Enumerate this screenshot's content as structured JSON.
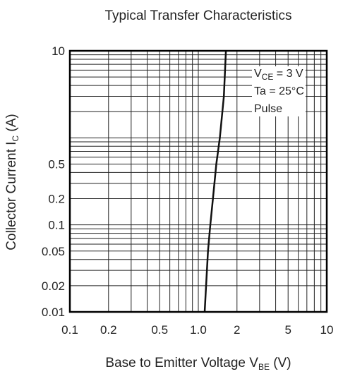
{
  "chart_data": {
    "type": "line",
    "title": "Typical Transfer Characteristics",
    "xlabel": {
      "prefix": "Base to Emitter Voltage  V",
      "sub": "BE",
      "suffix": "  (V)"
    },
    "ylabel": {
      "prefix": "Collector Current  I",
      "sub": "C",
      "suffix": "  (A)"
    },
    "x_scale": "log",
    "y_scale": "log",
    "xlim": [
      0.1,
      10
    ],
    "ylim": [
      0.01,
      10
    ],
    "x_ticks": [
      {
        "value": 0.1,
        "label": "0.1"
      },
      {
        "value": 0.2,
        "label": "0.2"
      },
      {
        "value": 0.5,
        "label": "0.5"
      },
      {
        "value": 1,
        "label": "1.0"
      },
      {
        "value": 2,
        "label": "2"
      },
      {
        "value": 5,
        "label": "5"
      },
      {
        "value": 10,
        "label": "10"
      }
    ],
    "y_ticks": [
      {
        "value": 0.01,
        "label": "0.01"
      },
      {
        "value": 0.02,
        "label": "0.02"
      },
      {
        "value": 0.05,
        "label": "0.05"
      },
      {
        "value": 0.1,
        "label": "0.1"
      },
      {
        "value": 0.2,
        "label": "0.2"
      },
      {
        "value": 0.5,
        "label": "0.5"
      },
      {
        "value": 10,
        "label": "10"
      }
    ],
    "grid": true,
    "annotations": [
      {
        "prefix": "V",
        "sub": "CE",
        "suffix": " = 3 V"
      },
      {
        "prefix": "Ta = 25°C",
        "sub": "",
        "suffix": ""
      },
      {
        "prefix": "Pulse",
        "sub": "",
        "suffix": ""
      }
    ],
    "series": [
      {
        "x": [
          1.12,
          1.15,
          1.19,
          1.24,
          1.3,
          1.38,
          1.47,
          1.58,
          1.64
        ],
        "y": [
          0.01,
          0.02,
          0.05,
          0.1,
          0.2,
          0.5,
          1,
          3,
          10
        ]
      }
    ],
    "colors": {
      "line": "#111111",
      "grid": "#222222",
      "frame": "#000000"
    }
  }
}
